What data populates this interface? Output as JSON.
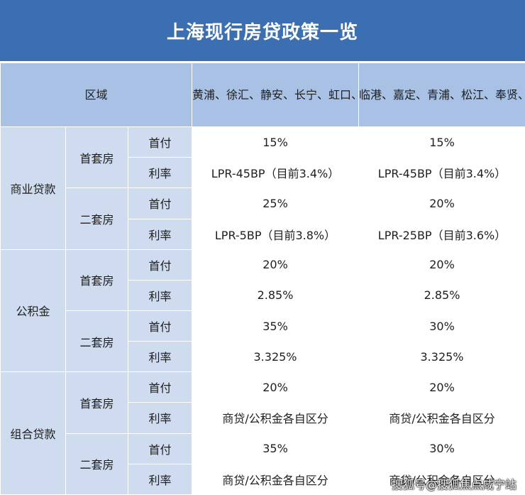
{
  "title": "上海现行房贷政策一览",
  "header": {
    "region": "区域",
    "col1": "黄浦、徐汇、静安、长宁、虹口、普陀、杨浦、闵行、崇明、浦东（除临港外）",
    "col2": "临港、嘉定、青浦、松江、奉贤、宝山、金山"
  },
  "sections": [
    {
      "category": "商业贷款",
      "groups": [
        {
          "name": "首套房",
          "rows": [
            {
              "label": "首付",
              "col1": "15%",
              "col2": "15%"
            },
            {
              "label": "利率",
              "col1": "LPR-45BP（目前3.4%）",
              "col2": "LPR-45BP（目前3.4%）"
            }
          ]
        },
        {
          "name": "二套房",
          "rows": [
            {
              "label": "首付",
              "col1": "25%",
              "col2": "20%"
            },
            {
              "label": "利率",
              "col1": "LPR-5BP（目前3.8%）",
              "col2": "LPR-25BP（目前3.6%）"
            }
          ]
        }
      ]
    },
    {
      "category": "公积金",
      "groups": [
        {
          "name": "首套房",
          "rows": [
            {
              "label": "首付",
              "col1": "20%",
              "col2": "20%"
            },
            {
              "label": "利率",
              "col1": "2.85%",
              "col2": "2.85%"
            }
          ]
        },
        {
          "name": "二套房",
          "rows": [
            {
              "label": "首付",
              "col1": "35%",
              "col2": "30%"
            },
            {
              "label": "利率",
              "col1": "3.325%",
              "col2": "3.325%"
            }
          ]
        }
      ]
    },
    {
      "category": "组合贷款",
      "groups": [
        {
          "name": "首套房",
          "rows": [
            {
              "label": "首付",
              "col1": "20%",
              "col2": "20%"
            },
            {
              "label": "利率",
              "col1": "商贷/公积金各自区分",
              "col2": "商贷/公积金各自区分"
            }
          ]
        },
        {
          "name": "二套房",
          "rows": [
            {
              "label": "首付",
              "col1": "35%",
              "col2": "30%"
            },
            {
              "label": "利率",
              "col1": "商贷/公积金各自区分",
              "col2": "商贷/公积金各自区分"
            }
          ]
        }
      ]
    }
  ],
  "watermark": "搜狐号@搜狐焦点咸宁站"
}
